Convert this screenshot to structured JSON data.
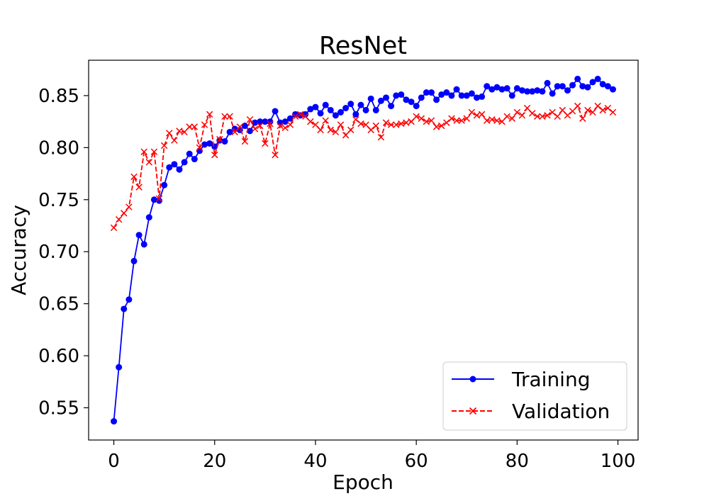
{
  "chart_data": {
    "type": "line",
    "title": "ResNet",
    "xlabel": "Epoch",
    "ylabel": "Accuracy",
    "xlim": [
      -5,
      104
    ],
    "ylim": [
      0.519,
      0.884
    ],
    "xticks": [
      0,
      20,
      40,
      60,
      80,
      100
    ],
    "yticks": [
      0.55,
      0.6,
      0.65,
      0.7,
      0.75,
      0.8,
      0.85
    ],
    "ytick_labels": [
      "0.55",
      "0.60",
      "0.65",
      "0.70",
      "0.75",
      "0.80",
      "0.85"
    ],
    "grid": false,
    "legend_position": "lower-right",
    "x": [
      0,
      1,
      2,
      3,
      4,
      5,
      6,
      7,
      8,
      9,
      10,
      11,
      12,
      13,
      14,
      15,
      16,
      17,
      18,
      19,
      20,
      21,
      22,
      23,
      24,
      25,
      26,
      27,
      28,
      29,
      30,
      31,
      32,
      33,
      34,
      35,
      36,
      37,
      38,
      39,
      40,
      41,
      42,
      43,
      44,
      45,
      46,
      47,
      48,
      49,
      50,
      51,
      52,
      53,
      54,
      55,
      56,
      57,
      58,
      59,
      60,
      61,
      62,
      63,
      64,
      65,
      66,
      67,
      68,
      69,
      70,
      71,
      72,
      73,
      74,
      75,
      76,
      77,
      78,
      79,
      80,
      81,
      82,
      83,
      84,
      85,
      86,
      87,
      88,
      89,
      90,
      91,
      92,
      93,
      94,
      95,
      96,
      97,
      98,
      99
    ],
    "series": [
      {
        "name": "Training",
        "color": "#0000ff",
        "line_style": "solid",
        "marker": "circle",
        "values": [
          0.537,
          0.589,
          0.645,
          0.654,
          0.691,
          0.716,
          0.707,
          0.733,
          0.75,
          0.749,
          0.764,
          0.781,
          0.784,
          0.779,
          0.786,
          0.794,
          0.789,
          0.797,
          0.803,
          0.804,
          0.801,
          0.807,
          0.806,
          0.815,
          0.818,
          0.817,
          0.821,
          0.816,
          0.824,
          0.825,
          0.825,
          0.825,
          0.835,
          0.824,
          0.825,
          0.828,
          0.832,
          0.831,
          0.832,
          0.837,
          0.839,
          0.833,
          0.841,
          0.836,
          0.831,
          0.834,
          0.838,
          0.842,
          0.832,
          0.841,
          0.836,
          0.847,
          0.836,
          0.845,
          0.848,
          0.84,
          0.85,
          0.851,
          0.846,
          0.844,
          0.84,
          0.848,
          0.853,
          0.853,
          0.846,
          0.851,
          0.853,
          0.85,
          0.856,
          0.85,
          0.85,
          0.852,
          0.848,
          0.849,
          0.859,
          0.856,
          0.858,
          0.856,
          0.857,
          0.85,
          0.857,
          0.855,
          0.854,
          0.854,
          0.855,
          0.854,
          0.862,
          0.852,
          0.859,
          0.859,
          0.855,
          0.86,
          0.866,
          0.859,
          0.858,
          0.863,
          0.866,
          0.861,
          0.859,
          0.856
        ]
      },
      {
        "name": "Validation",
        "color": "#ff0000",
        "line_style": "dashed",
        "marker": "x",
        "values": [
          0.723,
          0.731,
          0.737,
          0.743,
          0.772,
          0.762,
          0.796,
          0.786,
          0.796,
          0.751,
          0.802,
          0.814,
          0.807,
          0.816,
          0.815,
          0.82,
          0.82,
          0.8,
          0.822,
          0.832,
          0.793,
          0.808,
          0.83,
          0.83,
          0.815,
          0.82,
          0.806,
          0.827,
          0.818,
          0.821,
          0.804,
          0.823,
          0.793,
          0.821,
          0.819,
          0.822,
          0.83,
          0.832,
          0.83,
          0.825,
          0.822,
          0.817,
          0.826,
          0.817,
          0.815,
          0.822,
          0.812,
          0.817,
          0.827,
          0.823,
          0.822,
          0.817,
          0.821,
          0.81,
          0.824,
          0.822,
          0.822,
          0.823,
          0.824,
          0.825,
          0.83,
          0.828,
          0.825,
          0.826,
          0.82,
          0.821,
          0.824,
          0.828,
          0.826,
          0.826,
          0.828,
          0.834,
          0.831,
          0.832,
          0.826,
          0.827,
          0.826,
          0.825,
          0.83,
          0.828,
          0.834,
          0.831,
          0.838,
          0.833,
          0.83,
          0.83,
          0.831,
          0.834,
          0.83,
          0.836,
          0.831,
          0.835,
          0.84,
          0.828,
          0.836,
          0.834,
          0.84,
          0.836,
          0.838,
          0.834
        ]
      }
    ]
  }
}
